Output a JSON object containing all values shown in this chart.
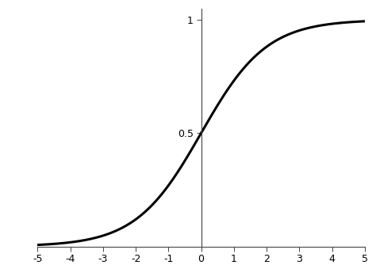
{
  "xlim": [
    -5,
    5
  ],
  "ylim": [
    0,
    1.05
  ],
  "xticks": [
    -5,
    -4,
    -3,
    -2,
    -1,
    0,
    1,
    2,
    3,
    4,
    5
  ],
  "yticks": [
    0.5,
    1
  ],
  "ytick_labels": [
    "0.5",
    "1"
  ],
  "x_origin_label": "0",
  "line_color": "#000000",
  "line_width": 2.2,
  "background_color": "#ffffff",
  "spine_color": "#444444",
  "tick_color": "#444444",
  "label_fontsize": 9,
  "fig_width": 4.74,
  "fig_height": 3.54,
  "dpi": 100
}
